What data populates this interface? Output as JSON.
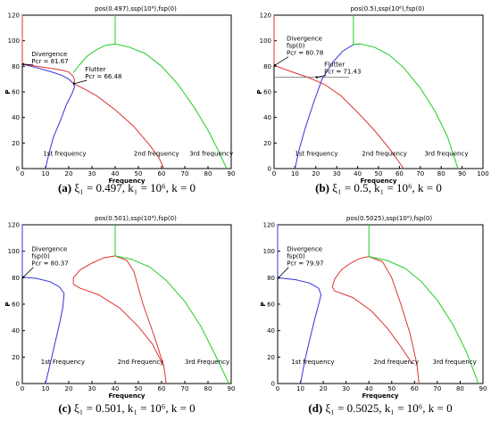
{
  "chart_data": [
    {
      "type": "line",
      "title": "pos(0.497),ssp(10⁶),fsp(0)",
      "caption_letter": "(a)",
      "caption_text": "ξ₁ = 0.497, k₁ = 10⁶, k = 0",
      "xlabel": "Frequency",
      "ylabel": "P",
      "xlim": [
        0,
        90
      ],
      "ylim": [
        0,
        120
      ],
      "xticks": [
        0,
        10,
        20,
        30,
        40,
        50,
        60,
        70,
        80,
        90
      ],
      "yticks": [
        0,
        20,
        40,
        60,
        80,
        100,
        120
      ],
      "annotations": [
        {
          "lines": [
            "Divergence",
            "Pcr = 81.67"
          ],
          "x": 4,
          "y": 88,
          "arrow_to": [
            0,
            81.67
          ]
        },
        {
          "lines": [
            "Flutter",
            "Pcr = 66.48"
          ],
          "x": 27,
          "y": 76,
          "arrow_to": [
            22,
            66.48
          ]
        }
      ],
      "series": [
        {
          "name": "1st frequency",
          "color": "#3333dd",
          "label_at": [
            9,
            10
          ],
          "points": [
            [
              10,
              0
            ],
            [
              11.5,
              12
            ],
            [
              13.5,
              25
            ],
            [
              16.5,
              38
            ],
            [
              19,
              50
            ],
            [
              21.5,
              59
            ],
            [
              22.5,
              64
            ],
            [
              22,
              66.5
            ],
            [
              20,
              70
            ],
            [
              17,
              73
            ],
            [
              12,
              76
            ],
            [
              6,
              79
            ],
            [
              0,
              81.67
            ]
          ]
        },
        {
          "name": "2nd frequency",
          "color": "#dd3333",
          "label_at": [
            48,
            10
          ],
          "points": [
            [
              0,
              81.67
            ],
            [
              6,
              80
            ],
            [
              12,
              78.5
            ],
            [
              17,
              77
            ],
            [
              20,
              75.5
            ],
            [
              22,
              72
            ],
            [
              22.5,
              69
            ],
            [
              22,
              66.5
            ],
            [
              25,
              64
            ],
            [
              32,
              57
            ],
            [
              40,
              46
            ],
            [
              48,
              33
            ],
            [
              55,
              18
            ],
            [
              59,
              8
            ],
            [
              61,
              0
            ]
          ]
        },
        {
          "name": "3rd frequency",
          "color": "#22cc22",
          "label_at": [
            72,
            10
          ],
          "points": [
            [
              22,
              75
            ],
            [
              25,
              82
            ],
            [
              28,
              88
            ],
            [
              32,
              93
            ],
            [
              36,
              96.5
            ],
            [
              40,
              97.5
            ],
            [
              46,
              95
            ],
            [
              53,
              90
            ],
            [
              60,
              80
            ],
            [
              67,
              66
            ],
            [
              74,
              48
            ],
            [
              80,
              30
            ],
            [
              85,
              12
            ],
            [
              88,
              0
            ]
          ]
        },
        {
          "name": "",
          "color": "#dd3333",
          "points": [
            [
              0,
              81.67
            ],
            [
              0,
              120
            ]
          ]
        },
        {
          "name": "",
          "color": "#22cc22",
          "points": [
            [
              40,
              97.5
            ],
            [
              40,
              120
            ]
          ]
        }
      ]
    },
    {
      "type": "line",
      "title": "pos(0.5),ssp(10⁶),fsp(0)",
      "caption_letter": "(b)",
      "caption_text": "ξ₁ = 0.5, k₁ = 10⁶, k = 0",
      "xlabel": "Frequency",
      "ylabel": "P",
      "xlim": [
        0,
        100
      ],
      "ylim": [
        0,
        120
      ],
      "xticks": [
        0,
        10,
        20,
        30,
        40,
        50,
        60,
        70,
        80,
        90,
        100
      ],
      "yticks": [
        0,
        20,
        40,
        60,
        80,
        100,
        120
      ],
      "hline": {
        "y": 71.43,
        "x0": 0,
        "x1": 36,
        "color": "#888888"
      },
      "annotations": [
        {
          "lines": [
            "Divergence",
            "fsp(0)",
            "Pcr = 80.78"
          ],
          "x": 6,
          "y": 100,
          "arrow_to": [
            0,
            80.78
          ]
        },
        {
          "lines": [
            "Flutter",
            "Pcr = 71.43"
          ],
          "x": 24,
          "y": 80,
          "arrow_to": [
            20,
            71.43
          ]
        }
      ],
      "series": [
        {
          "name": "1st frequency",
          "color": "#3333dd",
          "label_at": [
            10,
            10
          ],
          "points": [
            [
              10,
              0
            ],
            [
              12,
              15
            ],
            [
              15,
              32
            ],
            [
              19,
              52
            ],
            [
              23,
              70
            ],
            [
              28,
              83
            ],
            [
              33,
              92
            ],
            [
              38,
              97
            ],
            [
              41,
              97.5
            ]
          ]
        },
        {
          "name": "2nd frequency",
          "color": "#dd3333",
          "label_at": [
            42,
            10
          ],
          "points": [
            [
              0,
              80.78
            ],
            [
              8,
              76
            ],
            [
              16,
              71.5
            ],
            [
              24,
              66
            ],
            [
              32,
              57
            ],
            [
              40,
              44
            ],
            [
              48,
              30
            ],
            [
              56,
              14
            ],
            [
              62,
              0
            ]
          ]
        },
        {
          "name": "3rd frequency",
          "color": "#22cc22",
          "label_at": [
            72,
            10
          ],
          "points": [
            [
              38,
              97
            ],
            [
              41,
              97.5
            ],
            [
              48,
              95
            ],
            [
              55,
              89
            ],
            [
              62,
              79
            ],
            [
              70,
              63
            ],
            [
              77,
              45
            ],
            [
              83,
              25
            ],
            [
              88,
              0
            ]
          ]
        },
        {
          "name": "",
          "color": "#dd3333",
          "points": [
            [
              0,
              80.78
            ],
            [
              0,
              120
            ]
          ]
        },
        {
          "name": "",
          "color": "#22cc22",
          "points": [
            [
              38,
              97
            ],
            [
              38,
              120
            ]
          ]
        }
      ]
    },
    {
      "type": "line",
      "title": "pos(0.501),ssp(10⁶),fsp(0)",
      "caption_letter": "(c)",
      "caption_text": "ξ₁ = 0.501, k₁ = 10⁶, k = 0",
      "xlabel": "Frequency",
      "ylabel": "P",
      "xlim": [
        0,
        90
      ],
      "ylim": [
        0,
        120
      ],
      "xticks": [
        0,
        10,
        20,
        30,
        40,
        50,
        60,
        70,
        80,
        90
      ],
      "yticks": [
        0,
        20,
        40,
        60,
        80,
        100,
        120
      ],
      "annotations": [
        {
          "lines": [
            "Divergence",
            "fsp(0)",
            "Pcr = 80.37"
          ],
          "x": 4,
          "y": 100,
          "arrow_to": [
            0,
            80.37
          ]
        }
      ],
      "series": [
        {
          "name": "1st Frequency",
          "color": "#3333dd",
          "label_at": [
            8,
            15
          ],
          "points": [
            [
              0,
              80.37
            ],
            [
              6,
              79.5
            ],
            [
              12,
              77
            ],
            [
              16,
              73
            ],
            [
              18,
              68
            ],
            [
              17.5,
              58
            ],
            [
              16,
              45
            ],
            [
              14,
              30
            ],
            [
              12,
              15
            ],
            [
              10,
              0
            ]
          ]
        },
        {
          "name": "2nd Frequency",
          "color": "#dd3333",
          "label_at": [
            41,
            15
          ],
          "points": [
            [
              25,
              72
            ],
            [
              22,
              75
            ],
            [
              22,
              80
            ],
            [
              25,
              86
            ],
            [
              30,
              91
            ],
            [
              35,
              95
            ],
            [
              40,
              96.5
            ],
            [
              45,
              93
            ],
            [
              48,
              85
            ],
            [
              52,
              60
            ],
            [
              57,
              35
            ],
            [
              61,
              13
            ],
            [
              62,
              0
            ]
          ]
        },
        {
          "name": "3rd Frequency",
          "color": "#22cc22",
          "label_at": [
            70,
            15
          ],
          "points": [
            [
              40,
              96.5
            ],
            [
              47,
              94
            ],
            [
              55,
              88
            ],
            [
              62,
              78
            ],
            [
              70,
              62
            ],
            [
              77,
              43
            ],
            [
              83,
              22
            ],
            [
              89,
              0
            ]
          ]
        },
        {
          "name": "",
          "color": "#dd3333",
          "points": [
            [
              25,
              72
            ],
            [
              33,
              67
            ],
            [
              42,
              57
            ],
            [
              50,
              43
            ],
            [
              56,
              30
            ],
            [
              61,
              13
            ]
          ]
        },
        {
          "name": "",
          "color": "#3333dd",
          "points": [
            [
              0,
              80.37
            ],
            [
              0,
              120
            ]
          ]
        },
        {
          "name": "",
          "color": "#22cc22",
          "points": [
            [
              40,
              96.5
            ],
            [
              40,
              120
            ]
          ]
        }
      ]
    },
    {
      "type": "line",
      "title": "pos(0.5025),ssp(10⁶),fsp(0)",
      "caption_letter": "(d)",
      "caption_text": "ξ₁ = 0.5025, k₁ = 10⁶, k = 0",
      "xlabel": "Frequency",
      "ylabel": "P",
      "xlim": [
        0,
        90
      ],
      "ylim": [
        0,
        120
      ],
      "xticks": [
        0,
        10,
        20,
        30,
        40,
        50,
        60,
        70,
        80,
        90
      ],
      "yticks": [
        0,
        20,
        40,
        60,
        80,
        100,
        120
      ],
      "annotations": [
        {
          "lines": [
            "Divergence",
            "fsp(0)",
            "Pcr = 79.97"
          ],
          "x": 4,
          "y": 100,
          "arrow_to": [
            0,
            79.97
          ]
        }
      ],
      "series": [
        {
          "name": "1st frequency",
          "color": "#3333dd",
          "label_at": [
            6,
            15
          ],
          "points": [
            [
              0,
              79.97
            ],
            [
              8,
              78.5
            ],
            [
              14,
              76
            ],
            [
              18,
              72
            ],
            [
              19,
              67
            ],
            [
              18,
              60
            ],
            [
              16,
              47
            ],
            [
              14,
              33
            ],
            [
              12,
              18
            ],
            [
              10,
              0
            ]
          ]
        },
        {
          "name": "2nd frequency",
          "color": "#dd3333",
          "label_at": [
            42,
            15
          ],
          "points": [
            [
              25,
              70
            ],
            [
              24,
              73
            ],
            [
              25,
              79
            ],
            [
              28,
              86
            ],
            [
              32,
              91
            ],
            [
              36,
              94.5
            ],
            [
              40,
              96
            ],
            [
              46,
              92
            ],
            [
              50,
              80
            ],
            [
              54,
              60
            ],
            [
              58,
              38
            ],
            [
              61,
              15
            ],
            [
              62,
              0
            ]
          ]
        },
        {
          "name": "3rd frequency",
          "color": "#22cc22",
          "label_at": [
            68,
            15
          ],
          "points": [
            [
              40,
              96
            ],
            [
              48,
              93
            ],
            [
              56,
              87
            ],
            [
              63,
              77
            ],
            [
              70,
              63
            ],
            [
              77,
              44
            ],
            [
              83,
              23
            ],
            [
              88,
              0
            ]
          ]
        },
        {
          "name": "",
          "color": "#dd3333",
          "points": [
            [
              25,
              70
            ],
            [
              33,
              65
            ],
            [
              41,
              55
            ],
            [
              48,
              42
            ],
            [
              54,
              28
            ],
            [
              59,
              15
            ]
          ]
        },
        {
          "name": "",
          "color": "#3333dd",
          "points": [
            [
              0,
              79.97
            ],
            [
              0,
              120
            ]
          ]
        },
        {
          "name": "",
          "color": "#22cc22",
          "points": [
            [
              40,
              96
            ],
            [
              40,
              120
            ]
          ]
        }
      ]
    }
  ]
}
